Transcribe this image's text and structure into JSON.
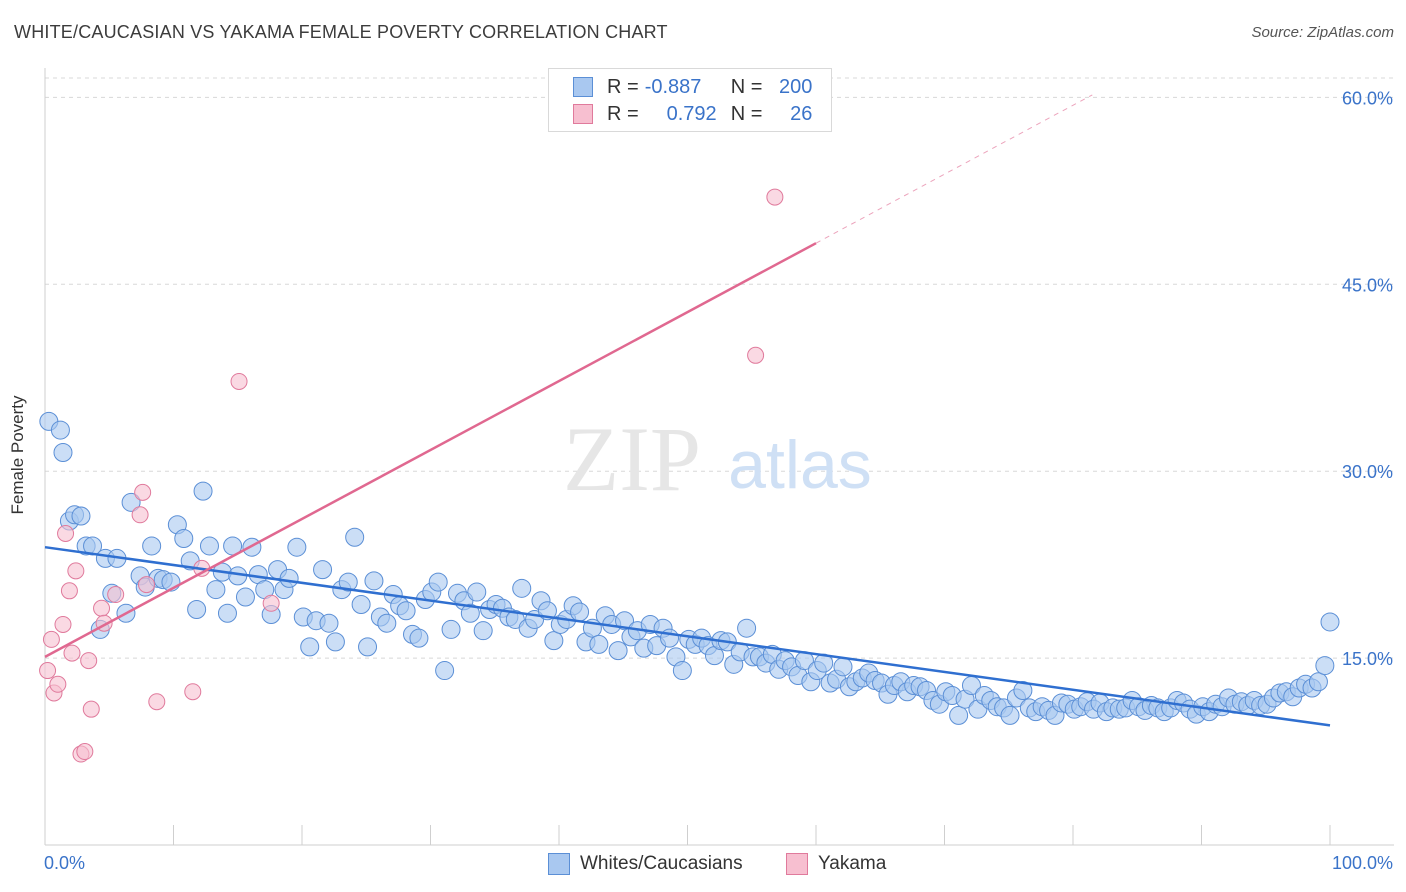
{
  "title": "WHITE/CAUCASIAN VS YAKAMA FEMALE POVERTY CORRELATION CHART",
  "source": "Source: ZipAtlas.com",
  "watermark": {
    "zip": "ZIP",
    "atlas": "atlas"
  },
  "colors": {
    "blue_fill": "#a9c8f0",
    "blue_stroke": "#5b8fd6",
    "blue_line": "#2f6fd0",
    "pink_fill": "#f7bfd0",
    "pink_stroke": "#e07a9c",
    "pink_line": "#e06890",
    "tick_label": "#3a73c9",
    "grid": "#d8d8d8"
  },
  "legend": {
    "rows": [
      {
        "r_label": "R =",
        "r_value": "-0.887",
        "n_label": "N =",
        "n_value": "200"
      },
      {
        "r_label": "R =",
        "r_value": "0.792",
        "n_label": "N =",
        "n_value": "26"
      }
    ]
  },
  "bottom_legend": {
    "blue": "Whites/Caucasians",
    "pink": "Yakama"
  },
  "chart_data": {
    "type": "scatter",
    "title": "WHITE/CAUCASIAN VS YAKAMA FEMALE POVERTY CORRELATION CHART",
    "xlabel": "",
    "ylabel": "Female Poverty",
    "xlim": [
      0,
      100
    ],
    "ylim": [
      0,
      63
    ],
    "x_tick_labels": [
      "0.0%",
      "100.0%"
    ],
    "y_ticks": [
      15,
      30,
      45,
      60
    ],
    "y_tick_labels": [
      "15.0%",
      "30.0%",
      "45.0%",
      "60.0%"
    ],
    "grid": "horizontal dashed",
    "legend_position": "top-center",
    "series": [
      {
        "name": "Whites/Caucasians",
        "stats": {
          "R": -0.887,
          "N": 200
        },
        "trend": {
          "x": [
            0,
            100
          ],
          "y": [
            23.9,
            9.6
          ]
        },
        "points": [
          [
            0.3,
            34.0
          ],
          [
            1.2,
            33.3
          ],
          [
            1.4,
            31.5
          ],
          [
            1.9,
            26.0
          ],
          [
            2.3,
            26.5
          ],
          [
            2.8,
            26.4
          ],
          [
            3.2,
            24.0
          ],
          [
            3.7,
            24.0
          ],
          [
            4.3,
            17.3
          ],
          [
            4.7,
            23.0
          ],
          [
            5.2,
            20.2
          ],
          [
            5.6,
            23.0
          ],
          [
            6.3,
            18.6
          ],
          [
            6.7,
            27.5
          ],
          [
            7.4,
            21.6
          ],
          [
            7.8,
            20.7
          ],
          [
            8.3,
            24.0
          ],
          [
            8.8,
            21.4
          ],
          [
            9.2,
            21.3
          ],
          [
            9.8,
            21.1
          ],
          [
            10.3,
            25.7
          ],
          [
            10.8,
            24.6
          ],
          [
            11.3,
            22.8
          ],
          [
            11.8,
            18.9
          ],
          [
            12.3,
            28.4
          ],
          [
            12.8,
            24.0
          ],
          [
            13.3,
            20.5
          ],
          [
            13.8,
            21.9
          ],
          [
            14.2,
            18.6
          ],
          [
            14.6,
            24.0
          ],
          [
            15.0,
            21.6
          ],
          [
            15.6,
            19.9
          ],
          [
            16.1,
            23.9
          ],
          [
            16.6,
            21.7
          ],
          [
            17.1,
            20.5
          ],
          [
            17.6,
            18.5
          ],
          [
            18.1,
            22.1
          ],
          [
            18.6,
            20.5
          ],
          [
            19.0,
            21.4
          ],
          [
            19.6,
            23.9
          ],
          [
            20.1,
            18.3
          ],
          [
            20.6,
            15.9
          ],
          [
            21.1,
            18.0
          ],
          [
            21.6,
            22.1
          ],
          [
            22.1,
            17.8
          ],
          [
            22.6,
            16.3
          ],
          [
            23.1,
            20.5
          ],
          [
            23.6,
            21.1
          ],
          [
            24.1,
            24.7
          ],
          [
            24.6,
            19.3
          ],
          [
            25.1,
            15.9
          ],
          [
            25.6,
            21.2
          ],
          [
            26.1,
            18.3
          ],
          [
            26.6,
            17.8
          ],
          [
            27.1,
            20.1
          ],
          [
            27.6,
            19.2
          ],
          [
            28.1,
            18.8
          ],
          [
            28.6,
            16.9
          ],
          [
            29.1,
            16.6
          ],
          [
            29.6,
            19.7
          ],
          [
            30.1,
            20.3
          ],
          [
            30.6,
            21.1
          ],
          [
            31.1,
            14.0
          ],
          [
            31.6,
            17.3
          ],
          [
            32.1,
            20.2
          ],
          [
            32.6,
            19.6
          ],
          [
            33.1,
            18.6
          ],
          [
            33.6,
            20.3
          ],
          [
            34.1,
            17.2
          ],
          [
            34.6,
            18.9
          ],
          [
            35.1,
            19.3
          ],
          [
            35.6,
            19.0
          ],
          [
            36.1,
            18.3
          ],
          [
            36.6,
            18.1
          ],
          [
            37.1,
            20.6
          ],
          [
            37.6,
            17.4
          ],
          [
            38.1,
            18.1
          ],
          [
            38.6,
            19.6
          ],
          [
            39.1,
            18.8
          ],
          [
            39.6,
            16.4
          ],
          [
            40.1,
            17.7
          ],
          [
            40.6,
            18.1
          ],
          [
            41.1,
            19.2
          ],
          [
            41.6,
            18.7
          ],
          [
            42.1,
            16.3
          ],
          [
            42.6,
            17.4
          ],
          [
            43.1,
            16.1
          ],
          [
            43.6,
            18.4
          ],
          [
            44.1,
            17.7
          ],
          [
            44.6,
            15.6
          ],
          [
            45.1,
            18.0
          ],
          [
            45.6,
            16.7
          ],
          [
            46.1,
            17.2
          ],
          [
            46.6,
            15.8
          ],
          [
            47.1,
            17.7
          ],
          [
            47.6,
            16.0
          ],
          [
            48.1,
            17.4
          ],
          [
            48.6,
            16.6
          ],
          [
            49.1,
            15.1
          ],
          [
            49.6,
            14.0
          ],
          [
            50.1,
            16.5
          ],
          [
            50.6,
            16.1
          ],
          [
            51.1,
            16.6
          ],
          [
            51.6,
            16.0
          ],
          [
            52.1,
            15.2
          ],
          [
            52.6,
            16.4
          ],
          [
            53.1,
            16.3
          ],
          [
            53.6,
            14.5
          ],
          [
            54.1,
            15.5
          ],
          [
            54.6,
            17.4
          ],
          [
            55.1,
            15.1
          ],
          [
            55.6,
            15.1
          ],
          [
            56.1,
            14.6
          ],
          [
            56.6,
            15.3
          ],
          [
            57.1,
            14.1
          ],
          [
            57.6,
            14.8
          ],
          [
            58.1,
            14.3
          ],
          [
            58.6,
            13.6
          ],
          [
            59.1,
            14.8
          ],
          [
            59.6,
            13.1
          ],
          [
            60.1,
            14.0
          ],
          [
            60.6,
            14.6
          ],
          [
            61.1,
            13.0
          ],
          [
            61.6,
            13.3
          ],
          [
            62.1,
            14.3
          ],
          [
            62.6,
            12.7
          ],
          [
            63.1,
            13.1
          ],
          [
            63.6,
            13.4
          ],
          [
            64.1,
            13.8
          ],
          [
            64.6,
            13.2
          ],
          [
            65.1,
            13.0
          ],
          [
            65.6,
            12.1
          ],
          [
            66.1,
            12.8
          ],
          [
            66.6,
            13.1
          ],
          [
            67.1,
            12.3
          ],
          [
            67.6,
            12.8
          ],
          [
            68.1,
            12.7
          ],
          [
            68.6,
            12.4
          ],
          [
            69.1,
            11.6
          ],
          [
            69.6,
            11.3
          ],
          [
            70.1,
            12.3
          ],
          [
            70.6,
            12.0
          ],
          [
            71.1,
            10.4
          ],
          [
            71.6,
            11.7
          ],
          [
            72.1,
            12.8
          ],
          [
            72.6,
            10.9
          ],
          [
            73.1,
            12.0
          ],
          [
            73.6,
            11.6
          ],
          [
            74.1,
            11.1
          ],
          [
            74.6,
            11.0
          ],
          [
            75.1,
            10.4
          ],
          [
            75.6,
            11.8
          ],
          [
            76.1,
            12.4
          ],
          [
            76.6,
            11.0
          ],
          [
            77.1,
            10.7
          ],
          [
            77.6,
            11.1
          ],
          [
            78.1,
            10.8
          ],
          [
            78.6,
            10.4
          ],
          [
            79.1,
            11.4
          ],
          [
            79.6,
            11.3
          ],
          [
            80.1,
            10.9
          ],
          [
            80.6,
            11.1
          ],
          [
            81.1,
            11.5
          ],
          [
            81.6,
            10.9
          ],
          [
            82.1,
            11.4
          ],
          [
            82.6,
            10.7
          ],
          [
            83.1,
            11.0
          ],
          [
            83.6,
            10.9
          ],
          [
            84.1,
            11.0
          ],
          [
            84.6,
            11.6
          ],
          [
            85.1,
            11.1
          ],
          [
            85.6,
            10.8
          ],
          [
            86.1,
            11.2
          ],
          [
            86.6,
            11.0
          ],
          [
            87.1,
            10.7
          ],
          [
            87.6,
            11.0
          ],
          [
            88.1,
            11.6
          ],
          [
            88.6,
            11.4
          ],
          [
            89.1,
            10.9
          ],
          [
            89.6,
            10.5
          ],
          [
            90.1,
            11.1
          ],
          [
            90.6,
            10.7
          ],
          [
            91.1,
            11.3
          ],
          [
            91.6,
            11.1
          ],
          [
            92.1,
            11.8
          ],
          [
            92.6,
            11.3
          ],
          [
            93.1,
            11.5
          ],
          [
            93.6,
            11.2
          ],
          [
            94.1,
            11.6
          ],
          [
            94.6,
            11.2
          ],
          [
            95.1,
            11.3
          ],
          [
            95.6,
            11.8
          ],
          [
            96.1,
            12.2
          ],
          [
            96.6,
            12.3
          ],
          [
            97.1,
            11.9
          ],
          [
            97.6,
            12.6
          ],
          [
            98.1,
            12.9
          ],
          [
            98.6,
            12.6
          ],
          [
            99.1,
            13.1
          ],
          [
            99.6,
            14.4
          ],
          [
            100.0,
            17.9
          ]
        ]
      },
      {
        "name": "Yakama",
        "stats": {
          "R": 0.792,
          "N": 26
        },
        "trend": {
          "x": [
            0,
            60
          ],
          "y": [
            15.1,
            48.3
          ]
        },
        "trend_extension": {
          "x": [
            60,
            81.5
          ],
          "y": [
            48.3,
            60.2
          ]
        },
        "points": [
          [
            0.2,
            14.0
          ],
          [
            0.5,
            16.5
          ],
          [
            0.7,
            12.2
          ],
          [
            1.0,
            12.9
          ],
          [
            1.4,
            17.7
          ],
          [
            1.6,
            25.0
          ],
          [
            1.9,
            20.4
          ],
          [
            2.1,
            15.4
          ],
          [
            2.4,
            22.0
          ],
          [
            2.8,
            7.3
          ],
          [
            3.1,
            7.5
          ],
          [
            3.4,
            14.8
          ],
          [
            3.6,
            10.9
          ],
          [
            4.4,
            19.0
          ],
          [
            4.6,
            17.8
          ],
          [
            5.5,
            20.1
          ],
          [
            7.4,
            26.5
          ],
          [
            7.6,
            28.3
          ],
          [
            7.9,
            20.9
          ],
          [
            8.7,
            11.5
          ],
          [
            11.5,
            12.3
          ],
          [
            12.2,
            22.2
          ],
          [
            15.1,
            37.2
          ],
          [
            17.6,
            19.4
          ],
          [
            55.3,
            39.3
          ],
          [
            56.8,
            52.0
          ]
        ]
      }
    ]
  }
}
